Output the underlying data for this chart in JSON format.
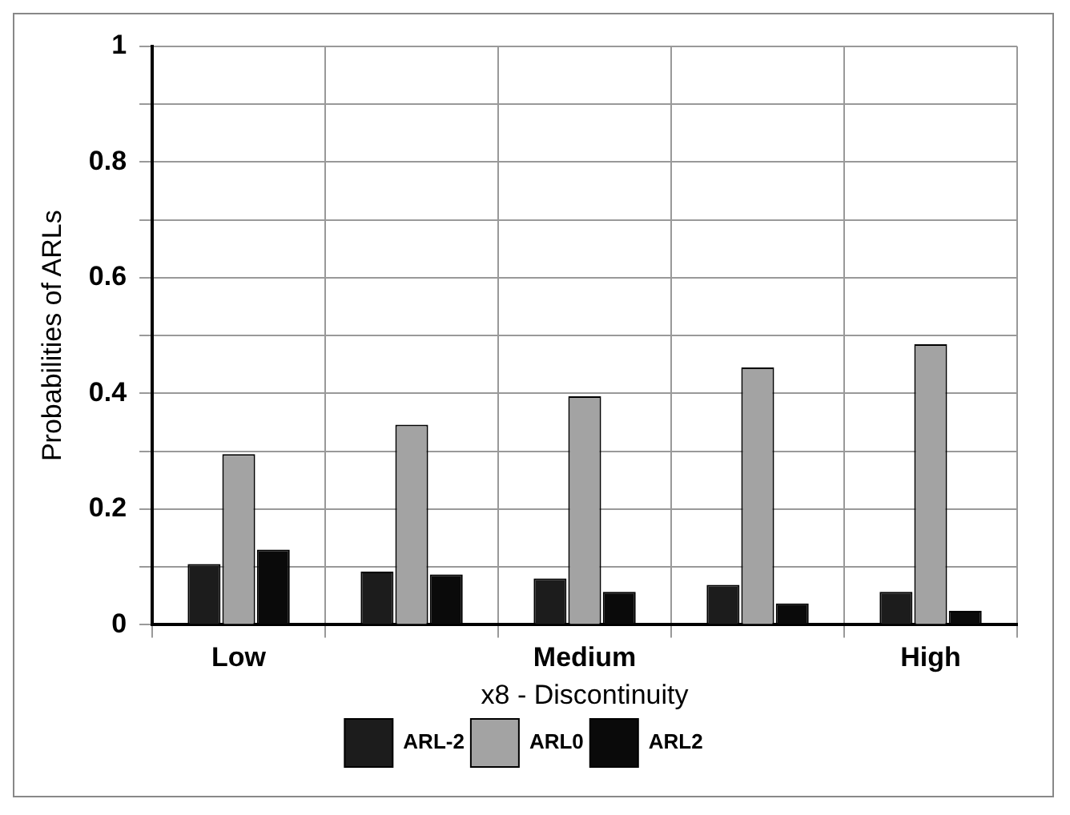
{
  "chart_data": {
    "type": "bar",
    "xlabel": "x8 - Discontinuity",
    "ylabel": "Probabilities of ARLs",
    "categories": [
      "Low",
      null,
      "Medium",
      null,
      "High"
    ],
    "series": [
      {
        "name": "ARL-2",
        "color": "#1c1c1c",
        "values": [
          0.105,
          0.092,
          0.08,
          0.069,
          0.057
        ]
      },
      {
        "name": "ARL0",
        "color": "#a3a3a3",
        "values": [
          0.295,
          0.346,
          0.395,
          0.445,
          0.485
        ]
      },
      {
        "name": "ARL2",
        "color": "#0a0a0a",
        "values": [
          0.13,
          0.087,
          0.057,
          0.037,
          0.024
        ]
      }
    ],
    "ylim": [
      0,
      1
    ],
    "yticks": [
      0,
      {
        "value": 0.1,
        "label": null
      },
      0.2,
      {
        "value": 0.3,
        "label": null
      },
      0.4,
      {
        "value": 0.5,
        "label": null
      },
      0.6,
      {
        "value": 0.7,
        "label": null
      },
      0.8,
      {
        "value": 0.9,
        "label": null
      },
      1
    ],
    "grid": true,
    "legend": "bottom"
  }
}
